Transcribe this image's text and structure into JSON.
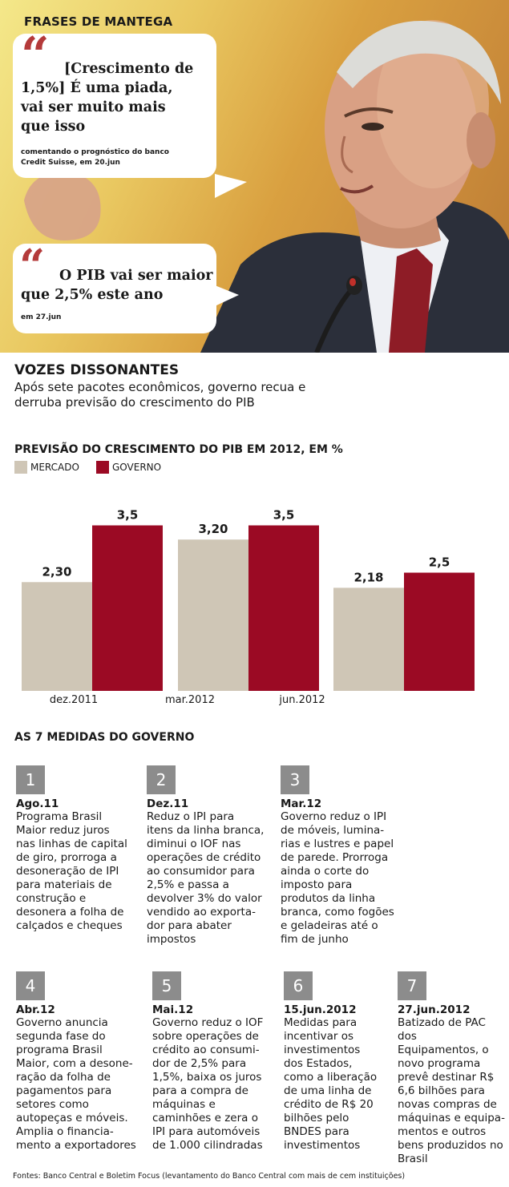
{
  "header": {
    "title": "FRASES DE MANTEGA",
    "quotes": [
      {
        "text_lines": [
          "[Crescimento de",
          "1,5%] É uma piada,",
          "vai ser muito mais",
          "que isso"
        ],
        "note_lines": [
          "comentando o prognóstico do banco",
          "Credit Suisse, em 20.jun"
        ]
      },
      {
        "text_lines": [
          "O PIB vai ser maior",
          "que 2,5% este ano"
        ],
        "note_lines": [
          "em 27.jun"
        ]
      }
    ]
  },
  "headline": {
    "title": "VOZES DISSONANTES",
    "subtitle": "Após sete pacotes econômicos, governo recua e derruba previsão do crescimento do PIB"
  },
  "chart_data": {
    "type": "bar",
    "title": "PREVISÃO DO CRESCIMENTO DO PIB EM 2012, EM %",
    "categories": [
      "dez.2011",
      "mar.2012",
      "jun.2012"
    ],
    "series": [
      {
        "name": "MERCADO",
        "color": "#cfc6b6",
        "values": [
          2.3,
          3.2,
          2.18
        ],
        "labels": [
          "2,30",
          "3,20",
          "2,18"
        ]
      },
      {
        "name": "GOVERNO",
        "color": "#9b0a24",
        "values": [
          3.5,
          3.5,
          2.5
        ],
        "labels": [
          "3,5",
          "3,5",
          "2,5"
        ]
      }
    ],
    "ylim": [
      0,
      4
    ],
    "grid": false,
    "legend": "top-left"
  },
  "medidas": {
    "title": "AS 7 MEDIDAS DO GOVERNO",
    "items": [
      {
        "num": "1",
        "date": "Ago.11",
        "text": "Programa Brasil\nMaior reduz juros\nnas linhas de capital\nde giro, prorroga a\ndesoneração de IPI\npara materiais de\nconstrução e\ndesonera a folha de\ncalçados e cheques"
      },
      {
        "num": "2",
        "date": "Dez.11",
        "text": "Reduz o IPI para\nitens da linha branca,\ndiminui o IOF nas\noperações de crédito\nao consumidor para\n2,5% e passa a\ndevolver 3% do valor\nvendido ao exporta-\ndor para abater\nimpostos"
      },
      {
        "num": "3",
        "date": "Mar.12",
        "text": "Governo reduz o IPI\nde móveis, lumina-\nrias e lustres e papel\nde parede. Prorroga\nainda o corte do\nimposto para\nprodutos da linha\nbranca, como fogões\ne geladeiras até o\nfim de junho"
      },
      {
        "num": "4",
        "date": "Abr.12",
        "text": "Governo anuncia\nsegunda fase do\nprograma Brasil\nMaior, com a desone-\nração da folha de\npagamentos para\nsetores como\nautopeças e móveis.\nAmplia o financia-\nmento a exportadores"
      },
      {
        "num": "5",
        "date": "Mai.12",
        "text": "Governo reduz o IOF\nsobre operações de\ncrédito ao consumi-\ndor de 2,5% para\n1,5%, baixa os juros\npara a compra de\nmáquinas e\ncaminhões e zera o\nIPI para automóveis\nde 1.000 cilindradas"
      },
      {
        "num": "6",
        "date": "15.jun.2012",
        "text": "Medidas para\nincentivar os\ninvestimentos\ndos Estados,\ncomo a liberação\nde uma linha de\ncrédito de R$ 20\nbilhões pelo\nBNDES para\ninvestimentos"
      },
      {
        "num": "7",
        "date": "27.jun.2012",
        "text": "Batizado de PAC dos\nEquipamentos, o\nnovo programa\nprevê destinar R$\n6,6 bilhões para\nnovas compras de\nmáquinas e equipa-\nmentos e outros\nbens produzidos no\nBrasil"
      }
    ]
  },
  "source": "Fontes: Banco Central e Boletim Focus (levantamento do Banco Central com mais de cem instituições)"
}
